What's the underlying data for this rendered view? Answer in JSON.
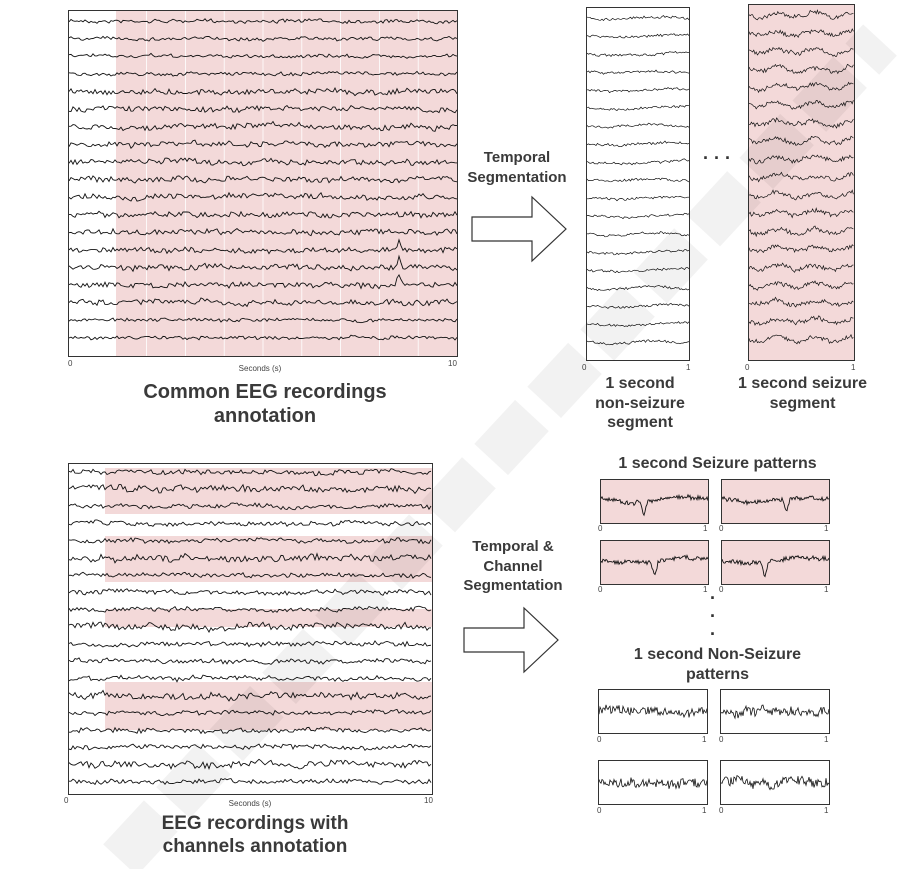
{
  "top_recording": {
    "x_start": "0",
    "x_end": "10",
    "xlabel": "Seconds (s)",
    "caption_line1": "Common EEG recordings",
    "caption_line2": "annotation"
  },
  "arrow_top": {
    "line1": "Temporal",
    "line2": "Segmentation"
  },
  "segment_nonseizure": {
    "x_start": "0",
    "x_end": "1",
    "caption_line1": "1 second",
    "caption_line2": "non-seizure",
    "caption_line3": "segment"
  },
  "segment_seizure": {
    "x_start": "0",
    "x_end": "1",
    "caption_line1": "1 second seizure",
    "caption_line2": "segment"
  },
  "ellipsis": "...",
  "bottom_recording": {
    "x_start": "0",
    "x_end": "10",
    "xlabel": "Seconds (s)",
    "caption_line1": "EEG recordings with",
    "caption_line2": "channels annotation"
  },
  "arrow_bottom": {
    "line1": "Temporal &",
    "line2": "Channel",
    "line3": "Segmentation"
  },
  "seizure_patterns": {
    "title": "1 second Seizure patterns",
    "x_start": "0",
    "x_end": "1"
  },
  "nonseizure_patterns": {
    "title_line1": "1 second Non-Seizure",
    "title_line2": "patterns",
    "x_start": "0",
    "x_end": "1"
  },
  "vertical_dots": ".",
  "colors": {
    "seizure_fill": "#f3d9d9",
    "trace": "#111111",
    "frame": "#333333",
    "watermark": "#dddddd"
  }
}
